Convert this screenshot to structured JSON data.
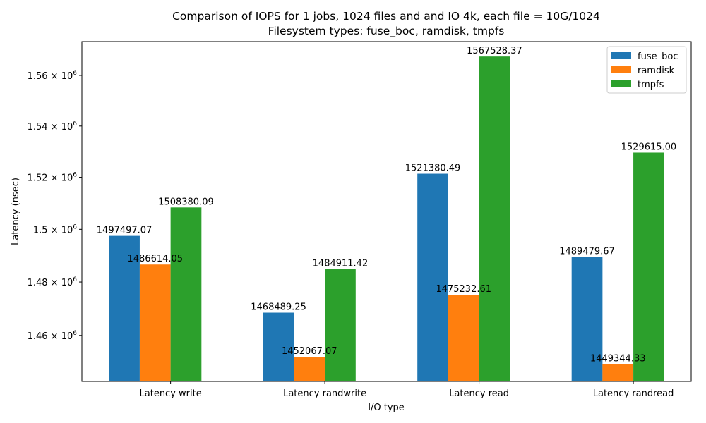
{
  "chart_data": {
    "type": "bar",
    "title": "Comparison of IOPS for 1 jobs, 1024 files and  and IO 4k, each file = 10G/1024",
    "subtitle": "Filesystem types: fuse_boc, ramdisk, tmpfs",
    "xlabel": "I/O type",
    "ylabel": "Latency (nsec)",
    "yscale": "log",
    "ylim": [
      1443000,
      1573500
    ],
    "grid": false,
    "legend_position": "top-right",
    "categories": [
      "Latency write",
      "Latency randwrite",
      "Latency read",
      "Latency randread"
    ],
    "series": [
      {
        "name": "fuse_boc",
        "color": "#1f77b4",
        "values": [
          1497497.07,
          1468489.25,
          1521380.49,
          1489479.67
        ],
        "labels": [
          "1497497.07",
          "1468489.25",
          "1521380.49",
          "1489479.67"
        ]
      },
      {
        "name": "ramdisk",
        "color": "#ff7f0e",
        "values": [
          1486614.05,
          1452067.07,
          1475232.61,
          1449344.33
        ],
        "labels": [
          "1486614.05",
          "1452067.07",
          "1475232.61",
          "1449344.33"
        ]
      },
      {
        "name": "tmpfs",
        "color": "#2ca02c",
        "values": [
          1508380.09,
          1484911.42,
          1567528.37,
          1529615.0
        ],
        "labels": [
          "1508380.09",
          "1484911.42",
          "1567528.37",
          "1529615.00"
        ]
      }
    ],
    "yticks": [
      {
        "value": 1460000,
        "mantissa": "1.46",
        "base": "10",
        "exp": "6"
      },
      {
        "value": 1480000,
        "mantissa": "1.48",
        "base": "10",
        "exp": "6"
      },
      {
        "value": 1500000,
        "mantissa": "1.5",
        "base": "10",
        "exp": "6"
      },
      {
        "value": 1520000,
        "mantissa": "1.52",
        "base": "10",
        "exp": "6"
      },
      {
        "value": 1540000,
        "mantissa": "1.54",
        "base": "10",
        "exp": "6"
      },
      {
        "value": 1560000,
        "mantissa": "1.56",
        "base": "10",
        "exp": "6"
      }
    ]
  }
}
